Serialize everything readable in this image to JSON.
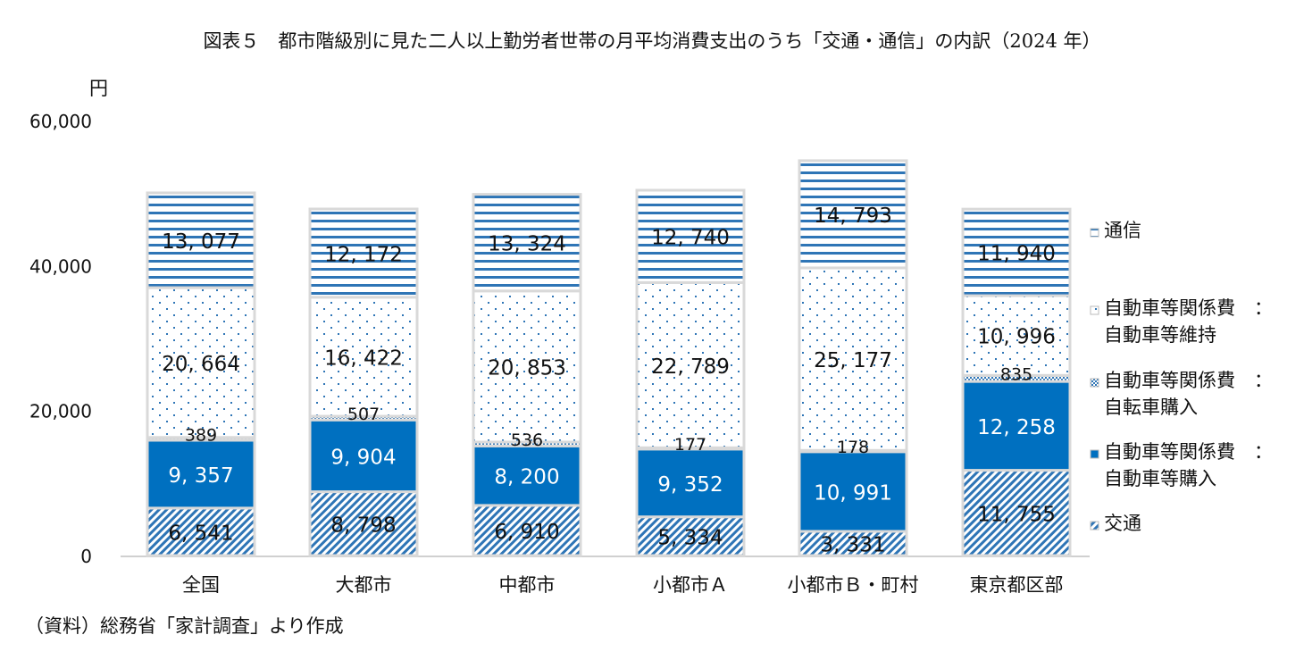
{
  "chart_data": {
    "type": "bar",
    "stacked": true,
    "title": "図表５　都市階級別に見た二人以上勤労者世帯の月平均消費支出のうち「交通・通信」の内訳（2024 年）",
    "ylabel": "円",
    "ylim": [
      0,
      60000
    ],
    "yticks": [
      "0",
      "20,000",
      "40,000",
      "60,000"
    ],
    "grid": false,
    "legend": "right",
    "categories": [
      "全国",
      "大都市",
      "中都市",
      "小都市Ａ",
      "小都市Ｂ・町村",
      "東京都区部"
    ],
    "series": [
      {
        "name": "交通",
        "pattern": "diagonal-hatch",
        "color": "#2e75b6",
        "values": [
          6541,
          8798,
          6910,
          5334,
          3331,
          11755
        ],
        "labels": [
          "6, 541",
          "8, 798",
          "6, 910",
          "5, 334",
          "3, 331",
          "11, 755"
        ]
      },
      {
        "name": "自動車等関係費　：\n自動車等購入",
        "pattern": "solid",
        "color": "#0070c0",
        "values": [
          9357,
          9904,
          8200,
          9352,
          10991,
          12258
        ],
        "labels": [
          "9, 357",
          "9, 904",
          "8, 200",
          "9, 352",
          "10, 991",
          "12, 258"
        ]
      },
      {
        "name": "自動車等関係費　：\n自転車購入",
        "pattern": "checker",
        "color": "#2e75b6",
        "values": [
          389,
          507,
          536,
          177,
          178,
          835
        ],
        "labels": [
          "389",
          "507",
          "536",
          "177",
          "178",
          "835"
        ]
      },
      {
        "name": "自動車等関係費　：\n自動車等維持",
        "pattern": "dots",
        "color": "#2e75b6",
        "values": [
          20664,
          16422,
          20853,
          22789,
          25177,
          10996
        ],
        "labels": [
          "20, 664",
          "16, 422",
          "20, 853",
          "22, 789",
          "25, 177",
          "10, 996"
        ]
      },
      {
        "name": "通信",
        "pattern": "horizontal-lines",
        "color": "#2e75b6",
        "values": [
          13077,
          12172,
          13324,
          12740,
          14793,
          11940
        ],
        "labels": [
          "13, 077",
          "12, 172",
          "13, 324",
          "12, 740",
          "14, 793",
          "11, 940"
        ]
      }
    ]
  },
  "note": "（資料）総務省「家計調査」より作成"
}
